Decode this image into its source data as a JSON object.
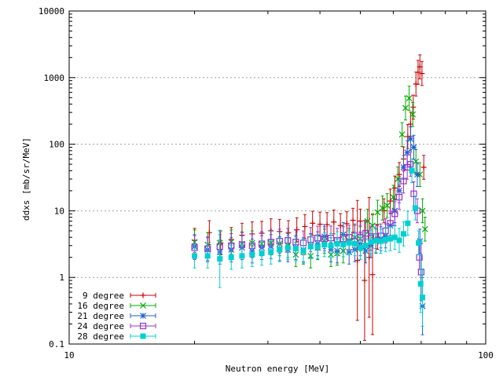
{
  "chart_data": {
    "type": "scatter",
    "title": "",
    "xlabel": "Neutron energy [MeV]",
    "ylabel": "ddxs [mb/sr/MeV]",
    "xscale": "log",
    "yscale": "log",
    "xlim": [
      10,
      100
    ],
    "ylim": [
      0.1,
      10000
    ],
    "x_major_ticks": [
      {
        "v": 10,
        "label": "10"
      },
      {
        "v": 100,
        "label": "100"
      }
    ],
    "y_major_ticks": [
      {
        "v": 0.1,
        "label": "0.1"
      },
      {
        "v": 1,
        "label": "1"
      },
      {
        "v": 10,
        "label": "10"
      },
      {
        "v": 100,
        "label": "100"
      },
      {
        "v": 1000,
        "label": "1000"
      },
      {
        "v": 10000,
        "label": "10000"
      }
    ],
    "grid": "horizontal",
    "legend_position": "bottom-left",
    "series": [
      {
        "name": "9 degree",
        "color": "#cc0000",
        "marker": "plus",
        "points": [
          [
            20.0,
            3.6
          ],
          [
            21.7,
            4.7
          ],
          [
            23.1,
            3.3
          ],
          [
            24.5,
            3.7
          ],
          [
            26.0,
            4.3
          ],
          [
            27.5,
            4.5
          ],
          [
            29.0,
            4.6
          ],
          [
            30.5,
            5.0
          ],
          [
            32.0,
            4.9
          ],
          [
            33.6,
            4.7
          ],
          [
            35.2,
            5.2
          ],
          [
            36.8,
            5.8
          ],
          [
            38.4,
            6.5
          ],
          [
            40.0,
            6.3
          ],
          [
            41.6,
            6.2
          ],
          [
            43.2,
            6.8
          ],
          [
            44.8,
            6.0
          ],
          [
            46.4,
            6.4
          ],
          [
            48.0,
            7.2
          ],
          [
            49.2,
            1.8
          ],
          [
            50.0,
            7.0
          ],
          [
            51.2,
            0.9
          ],
          [
            52.5,
            2.0
          ],
          [
            53.5,
            1.1
          ],
          [
            55.0,
            4.0
          ],
          [
            57.0,
            10.0
          ],
          [
            59.0,
            14.0
          ],
          [
            60.5,
            22.0
          ],
          [
            62.0,
            35.0
          ],
          [
            63.5,
            60.0
          ],
          [
            65.0,
            130.0
          ],
          [
            66.0,
            200.0
          ],
          [
            67.0,
            360.0
          ],
          [
            68.0,
            800.0
          ],
          [
            68.8,
            1200.0
          ],
          [
            69.5,
            1450.0
          ],
          [
            70.3,
            1150.0
          ],
          [
            71.0,
            45.0
          ]
        ]
      },
      {
        "name": "16 degree",
        "color": "#00aa00",
        "marker": "x",
        "points": [
          [
            20.0,
            3.4
          ],
          [
            21.5,
            3.1
          ],
          [
            23.0,
            3.3
          ],
          [
            24.5,
            3.4
          ],
          [
            26.0,
            3.2
          ],
          [
            27.5,
            3.3
          ],
          [
            29.0,
            3.2
          ],
          [
            30.5,
            3.3
          ],
          [
            32.0,
            3.2
          ],
          [
            33.5,
            3.0
          ],
          [
            35.0,
            2.2
          ],
          [
            36.5,
            2.4
          ],
          [
            38.0,
            2.1
          ],
          [
            39.5,
            2.8
          ],
          [
            41.0,
            3.5
          ],
          [
            42.5,
            2.2
          ],
          [
            44.0,
            2.3
          ],
          [
            45.5,
            2.5
          ],
          [
            47.0,
            3.6
          ],
          [
            48.5,
            4.0
          ],
          [
            50.0,
            3.8
          ],
          [
            52.0,
            7.0
          ],
          [
            53.5,
            6.0
          ],
          [
            55.0,
            9.5
          ],
          [
            56.5,
            11.0
          ],
          [
            58.0,
            12.0
          ],
          [
            60.0,
            16.0
          ],
          [
            61.5,
            30.0
          ],
          [
            63.0,
            140.0
          ],
          [
            64.2,
            350.0
          ],
          [
            65.5,
            490.0
          ],
          [
            66.8,
            280.0
          ],
          [
            68.0,
            55.0
          ],
          [
            69.5,
            35.0
          ],
          [
            70.5,
            10.0
          ],
          [
            71.5,
            5.3
          ]
        ]
      },
      {
        "name": "21 degree",
        "color": "#1f5fd0",
        "marker": "star",
        "points": [
          [
            20.0,
            2.9
          ],
          [
            21.5,
            2.6
          ],
          [
            23.0,
            2.4
          ],
          [
            24.5,
            2.6
          ],
          [
            26.0,
            2.8
          ],
          [
            27.5,
            2.5
          ],
          [
            29.0,
            2.8
          ],
          [
            30.5,
            2.9
          ],
          [
            32.0,
            2.7
          ],
          [
            33.5,
            2.6
          ],
          [
            35.0,
            2.8
          ],
          [
            36.5,
            2.6
          ],
          [
            38.0,
            3.0
          ],
          [
            39.5,
            3.2
          ],
          [
            41.0,
            4.1
          ],
          [
            42.5,
            2.6
          ],
          [
            44.0,
            2.5
          ],
          [
            45.5,
            4.4
          ],
          [
            47.0,
            2.4
          ],
          [
            48.5,
            2.6
          ],
          [
            50.0,
            3.2
          ],
          [
            51.5,
            2.5
          ],
          [
            53.0,
            3.0
          ],
          [
            54.5,
            3.5
          ],
          [
            56.0,
            3.8
          ],
          [
            57.5,
            4.2
          ],
          [
            59.0,
            6.0
          ],
          [
            60.5,
            10.0
          ],
          [
            62.0,
            20.0
          ],
          [
            63.5,
            45.0
          ],
          [
            64.8,
            75.0
          ],
          [
            66.0,
            120.0
          ],
          [
            67.2,
            90.0
          ],
          [
            68.5,
            35.0
          ],
          [
            69.5,
            3.5
          ],
          [
            70.5,
            0.37
          ]
        ]
      },
      {
        "name": "24 degree",
        "color": "#9932cc",
        "marker": "square",
        "points": [
          [
            20.0,
            2.8
          ],
          [
            21.5,
            2.7
          ],
          [
            23.0,
            2.9
          ],
          [
            24.5,
            3.0
          ],
          [
            26.0,
            3.1
          ],
          [
            27.5,
            3.0
          ],
          [
            29.0,
            3.2
          ],
          [
            30.5,
            3.4
          ],
          [
            32.0,
            3.5
          ],
          [
            33.5,
            3.6
          ],
          [
            35.0,
            3.4
          ],
          [
            36.5,
            3.3
          ],
          [
            38.0,
            3.7
          ],
          [
            39.5,
            3.9
          ],
          [
            41.0,
            3.8
          ],
          [
            42.5,
            3.9
          ],
          [
            44.0,
            3.6
          ],
          [
            45.5,
            3.8
          ],
          [
            47.0,
            4.0
          ],
          [
            48.5,
            4.2
          ],
          [
            50.0,
            4.0
          ],
          [
            51.5,
            4.6
          ],
          [
            53.0,
            3.9
          ],
          [
            54.5,
            4.1
          ],
          [
            56.0,
            4.2
          ],
          [
            57.5,
            5.0
          ],
          [
            59.0,
            6.5
          ],
          [
            60.5,
            9.0
          ],
          [
            62.0,
            16.0
          ],
          [
            63.5,
            28.0
          ],
          [
            64.8,
            45.0
          ],
          [
            66.0,
            50.0
          ],
          [
            67.2,
            18.0
          ],
          [
            68.5,
            10.0
          ],
          [
            69.3,
            2.0
          ],
          [
            70.0,
            1.2
          ]
        ]
      },
      {
        "name": "28 degree",
        "color": "#00d0d0",
        "marker": "filled-square",
        "points": [
          [
            20.0,
            2.1
          ],
          [
            21.5,
            2.1
          ],
          [
            23.0,
            1.9
          ],
          [
            24.5,
            2.0
          ],
          [
            26.0,
            2.1
          ],
          [
            27.5,
            2.2
          ],
          [
            29.0,
            2.3
          ],
          [
            30.5,
            2.4
          ],
          [
            32.0,
            2.6
          ],
          [
            33.5,
            2.8
          ],
          [
            35.0,
            2.7
          ],
          [
            36.5,
            2.5
          ],
          [
            38.0,
            2.9
          ],
          [
            39.5,
            2.9
          ],
          [
            41.0,
            3.1
          ],
          [
            42.5,
            3.0
          ],
          [
            44.0,
            3.2
          ],
          [
            45.5,
            3.1
          ],
          [
            47.0,
            3.3
          ],
          [
            48.5,
            3.2
          ],
          [
            50.0,
            2.8
          ],
          [
            51.5,
            3.0
          ],
          [
            53.0,
            3.4
          ],
          [
            54.5,
            3.6
          ],
          [
            56.0,
            3.5
          ],
          [
            57.5,
            3.7
          ],
          [
            59.0,
            3.8
          ],
          [
            60.5,
            4.0
          ],
          [
            62.0,
            3.6
          ],
          [
            63.5,
            4.5
          ],
          [
            65.0,
            6.5
          ],
          [
            66.5,
            40.0
          ],
          [
            67.8,
            11.0
          ],
          [
            69.0,
            3.3
          ],
          [
            69.8,
            0.8
          ],
          [
            70.5,
            0.5
          ]
        ]
      }
    ]
  }
}
